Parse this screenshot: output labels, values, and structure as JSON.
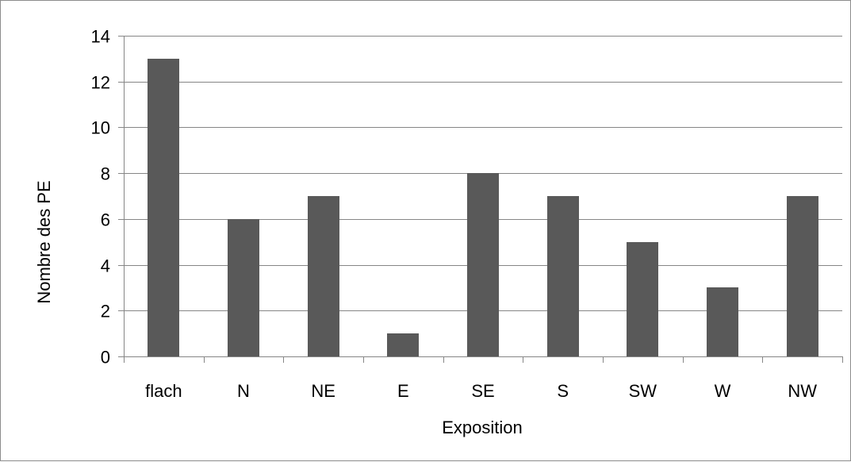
{
  "chart_data": {
    "type": "bar",
    "title": "",
    "xlabel": "Exposition",
    "ylabel": "Nombre des PE",
    "categories": [
      "flach",
      "N",
      "NE",
      "E",
      "SE",
      "S",
      "SW",
      "W",
      "NW"
    ],
    "values": [
      13,
      6,
      7,
      1,
      8,
      7,
      5,
      3,
      7
    ],
    "ylim": [
      0,
      14
    ],
    "yticks": [
      0,
      2,
      4,
      6,
      8,
      10,
      12,
      14
    ],
    "grid": true,
    "legend": "none",
    "bar_color": "#595959",
    "grid_color": "#868686",
    "axis_color": "#868686"
  }
}
